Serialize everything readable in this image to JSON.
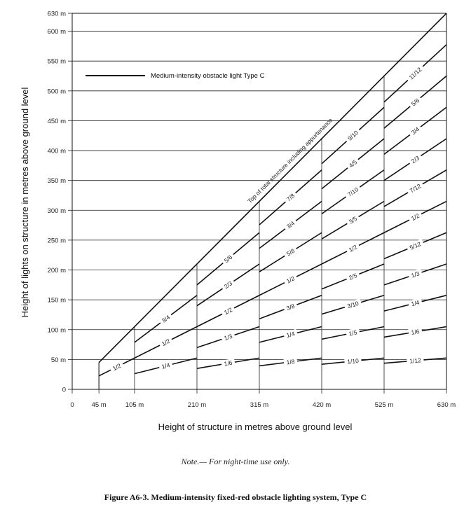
{
  "chart_data": {
    "type": "line",
    "xlabel": "Height of structure in metres above ground level",
    "ylabel": "Height of lights on structure in metres above ground level",
    "xlim": [
      0,
      630
    ],
    "ylim": [
      0,
      630
    ],
    "x_ticks": [
      {
        "value": 0,
        "label": "0"
      },
      {
        "value": 45,
        "label": "45 m"
      },
      {
        "value": 105,
        "label": "105 m"
      },
      {
        "value": 210,
        "label": "210 m"
      },
      {
        "value": 315,
        "label": "315 m"
      },
      {
        "value": 420,
        "label": "420 m"
      },
      {
        "value": 525,
        "label": "525 m"
      },
      {
        "value": 630,
        "label": "630 m"
      }
    ],
    "y_ticks": [
      {
        "value": 0,
        "label": "0"
      },
      {
        "value": 50,
        "label": "50 m"
      },
      {
        "value": 100,
        "label": "100 m"
      },
      {
        "value": 150,
        "label": "150 m"
      },
      {
        "value": 200,
        "label": "200 m"
      },
      {
        "value": 250,
        "label": "250 m"
      },
      {
        "value": 300,
        "label": "300 m"
      },
      {
        "value": 350,
        "label": "350 m"
      },
      {
        "value": 400,
        "label": "400 m"
      },
      {
        "value": 450,
        "label": "450 m"
      },
      {
        "value": 500,
        "label": "500 m"
      },
      {
        "value": 550,
        "label": "550 m"
      },
      {
        "value": 600,
        "label": "600 m"
      },
      {
        "value": 630,
        "label": "630 m"
      }
    ],
    "grid": true,
    "legend": {
      "placement": "top-left",
      "label": "Medium-intensity obstacle light Type C"
    },
    "top_line_label": "Top of total structure including appurtenance",
    "bands": [
      {
        "x_range": [
          45,
          105
        ],
        "fractions": [
          "1/2"
        ]
      },
      {
        "x_range": [
          105,
          210
        ],
        "fractions": [
          "1/4",
          "1/2",
          "3/4"
        ]
      },
      {
        "x_range": [
          210,
          315
        ],
        "fractions": [
          "1/6",
          "1/3",
          "1/2",
          "2/3",
          "5/6"
        ]
      },
      {
        "x_range": [
          315,
          420
        ],
        "fractions": [
          "1/8",
          "1/4",
          "3/8",
          "1/2",
          "5/8",
          "3/4",
          "7/8"
        ]
      },
      {
        "x_range": [
          420,
          525
        ],
        "fractions": [
          "1/10",
          "1/5",
          "3/10",
          "2/5",
          "1/2",
          "3/5",
          "7/10",
          "4/5",
          "9/10"
        ]
      },
      {
        "x_range": [
          525,
          630
        ],
        "fractions": [
          "1/12",
          "1/6",
          "1/4",
          "1/3",
          "5/12",
          "1/2",
          "7/12",
          "2/3",
          "3/4",
          "5/6",
          "11/12"
        ]
      }
    ]
  },
  "note": "Note.— For night-time use only.",
  "caption": "Figure A6-3.    Medium-intensity fixed-red obstacle lighting system, Type C"
}
